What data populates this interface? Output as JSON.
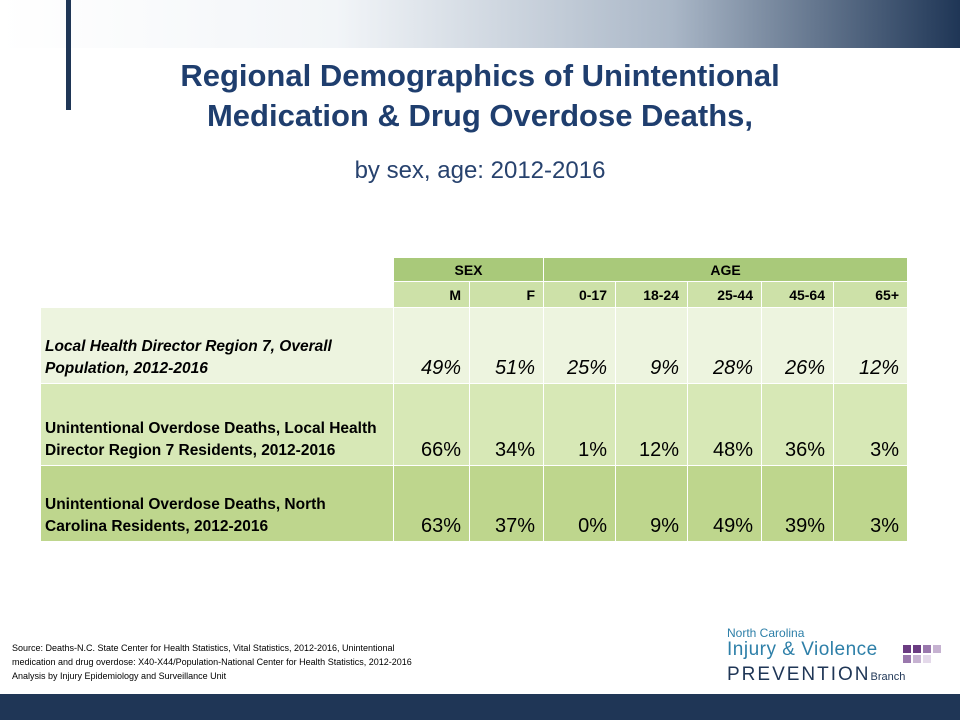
{
  "title": {
    "line1": "Regional Demographics of Unintentional",
    "line2": "Medication & Drug Overdose Deaths,",
    "subtitle": "by sex, age: 2012-2016"
  },
  "table": {
    "groups": [
      "SEX",
      "AGE"
    ],
    "columns": [
      "M",
      "F",
      "0-17",
      "18-24",
      "25-44",
      "45-64",
      "65+"
    ],
    "rows": [
      {
        "label": "Local Health Director Region 7, Overall Population, 2012-2016",
        "values": [
          "49%",
          "51%",
          "25%",
          "9%",
          "28%",
          "26%",
          "12%"
        ]
      },
      {
        "label": "Unintentional Overdose Deaths, Local Health Director Region 7 Residents, 2012-2016",
        "values": [
          "66%",
          "34%",
          "1%",
          "12%",
          "48%",
          "36%",
          "3%"
        ]
      },
      {
        "label": "Unintentional Overdose Deaths, North Carolina Residents, 2012-2016",
        "values": [
          "63%",
          "37%",
          "0%",
          "9%",
          "49%",
          "39%",
          "3%"
        ]
      }
    ]
  },
  "source": {
    "line1": "Source: Deaths-N.C. State Center for Health Statistics, Vital Statistics, 2012-2016, Unintentional",
    "line2": "medication and drug overdose: X40-X44/Population-National Center for Health Statistics, 2012-2016",
    "line3": "Analysis by Injury Epidemiology and Surveillance Unit"
  },
  "logo": {
    "line1": "North Carolina",
    "line2": "Injury & Violence",
    "line3": "PREVENTION",
    "line3_suffix": "Branch"
  }
}
